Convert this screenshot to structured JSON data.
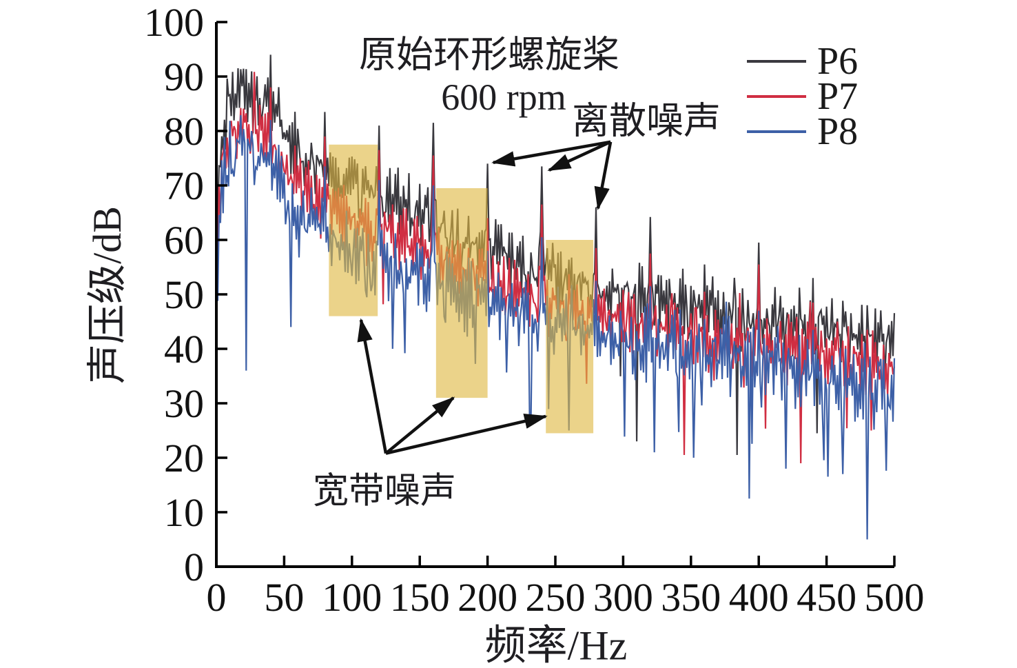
{
  "figure": {
    "background": "#ffffff"
  },
  "chart_data": {
    "type": "line",
    "title": "原始环形螺旋桨",
    "subtitle": "600 rpm",
    "xlabel": "频率/Hz",
    "ylabel": "声压级/dB",
    "xlim": [
      0,
      500
    ],
    "ylim": [
      0,
      100
    ],
    "x_ticks": [
      0,
      50,
      100,
      150,
      200,
      250,
      300,
      350,
      400,
      450,
      500
    ],
    "y_ticks": [
      0,
      10,
      20,
      30,
      40,
      50,
      60,
      70,
      80,
      90,
      100
    ],
    "grid": false,
    "legend": {
      "position": "top-right",
      "entries": [
        {
          "label": "P6",
          "color": "#3a393f"
        },
        {
          "label": "P7",
          "color": "#d02e42"
        },
        {
          "label": "P8",
          "color": "#3d60a7"
        }
      ]
    },
    "x_anchor_hz": [
      0,
      5,
      10,
      20,
      30,
      40,
      50,
      60,
      75,
      100,
      125,
      150,
      175,
      200,
      225,
      250,
      275,
      300,
      325,
      350,
      375,
      400,
      425,
      450,
      475,
      500
    ],
    "series": [
      {
        "name": "P6",
        "color": "#3a393f",
        "noise_db": 4.6,
        "dip_prob": 0.04,
        "dip_max_db": 22,
        "seed": 7,
        "trend_db": [
          62,
          82,
          86,
          87,
          86,
          85,
          80,
          76,
          74,
          70,
          67,
          64,
          61,
          57.5,
          54.5,
          53,
          51.5,
          50,
          49,
          48,
          46.5,
          45.5,
          44.5,
          43.5,
          42,
          40.5
        ],
        "notable_dips": [
          [
            310,
            23
          ],
          [
            384,
            20.5
          ],
          [
            443,
            24.5
          ]
        ]
      },
      {
        "name": "P7",
        "color": "#d02e42",
        "noise_db": 4.4,
        "dip_prob": 0.05,
        "dip_max_db": 20,
        "seed": 13,
        "trend_db": [
          56,
          77,
          80,
          81,
          80,
          78,
          74,
          70,
          67,
          64,
          61,
          58,
          55,
          52.5,
          50,
          48,
          46.5,
          45,
          44,
          43,
          42,
          41,
          40,
          39,
          37.5,
          36
        ],
        "notable_dips": [
          [
            345,
            20.5
          ],
          [
            483,
            25
          ]
        ]
      },
      {
        "name": "P8",
        "color": "#3d60a7",
        "noise_db": 5.0,
        "dip_prob": 0.1,
        "dip_max_db": 24,
        "seed": 42,
        "trend_db": [
          50,
          72,
          76,
          77,
          76,
          74,
          68.5,
          64.5,
          61.5,
          58,
          56,
          53,
          50.5,
          48.5,
          46.5,
          44.5,
          43,
          41.5,
          40.5,
          39.5,
          38.5,
          37.5,
          36.5,
          35,
          33.5,
          32
        ],
        "notable_dips": [
          [
            22,
            36
          ],
          [
            55,
            44
          ],
          [
            130,
            40
          ],
          [
            232,
            27
          ],
          [
            260,
            25
          ],
          [
            323,
            21
          ],
          [
            352,
            20
          ],
          [
            393,
            12.5
          ],
          [
            420,
            18
          ],
          [
            462,
            17
          ],
          [
            480,
            5
          ]
        ]
      }
    ],
    "tonal_peaks": {
      "frequencies_hz": [
        40,
        80,
        120,
        160,
        200,
        240,
        280,
        320,
        360,
        400,
        440,
        480
      ],
      "P6_db": [
        94,
        83.5,
        81,
        81.5,
        74,
        73.5,
        66,
        64.2,
        55.5,
        59.5,
        53,
        48
      ],
      "P7_db": [
        88,
        79,
        76.5,
        75.5,
        64,
        66.5,
        58.5,
        57.5,
        50.5,
        55.5,
        48.5,
        43.5
      ],
      "P8_db": [
        82,
        73.5,
        71,
        70,
        58,
        60.5,
        52.5,
        51.5,
        45.5,
        47,
        43.5,
        38.5
      ]
    },
    "highlight_boxes": [
      {
        "x0_hz": 83,
        "x1_hz": 119,
        "y0_db": 46,
        "y1_db": 77.5
      },
      {
        "x0_hz": 162,
        "x1_hz": 200,
        "y0_db": 31,
        "y1_db": 69.5
      },
      {
        "x0_hz": 243,
        "x1_hz": 278,
        "y0_db": 24.5,
        "y1_db": 60
      }
    ],
    "highlight_style": {
      "fill": "#deb842",
      "opacity": 0.62
    },
    "annotations": {
      "discrete": {
        "text": "离散噪声",
        "arrow_origin_hz_db": [
          290.7,
          78
        ],
        "arrow_targets_hz_db": [
          [
            204.2,
            74.2
          ],
          [
            245.4,
            72.8
          ],
          [
            281.5,
            65.8
          ]
        ]
      },
      "broadband": {
        "text": "宽带噪声",
        "arrow_origin_hz_db": [
          125,
          20.8
        ],
        "arrow_targets_hz_db": [
          [
            106.7,
            45.3
          ],
          [
            174.8,
            31
          ],
          [
            242.9,
            27.6
          ]
        ]
      }
    }
  }
}
